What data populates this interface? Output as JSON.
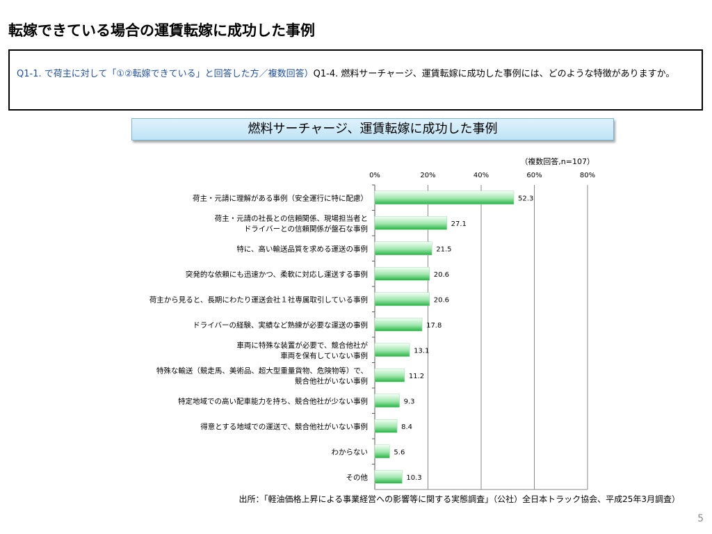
{
  "title": "転嫁できている場合の運賃転嫁に成功した事例",
  "question": {
    "q1": "Q1-1. で荷主に対して「①②転嫁できている」と回答した方／複数回答）",
    "q2": "Q1-4. 燃料サーチャージ、運賃転嫁に成功した事例には、どのような特徴がありますか。"
  },
  "chart_title": "燃料サーチャージ、運賃転嫁に成功した事例",
  "chart_data": {
    "type": "bar",
    "orientation": "horizontal",
    "note": "（複数回答,n=107）",
    "unit": "%",
    "xlim": [
      0,
      80
    ],
    "xticks": [
      "0%",
      "20%",
      "40%",
      "60%",
      "80%"
    ],
    "tick_values": [
      0,
      20,
      40,
      60,
      80
    ],
    "grid": true,
    "bar_color": "#2dbb4a",
    "categories": [
      [
        "荷主・元請に理解がある事例（安全運行に特に配慮）"
      ],
      [
        "荷主・元請の社長との信頼関係、現場担当者と",
        "ドライバーとの信頼関係が盤石な事例"
      ],
      [
        "特に、高い輸送品質を求める運送の事例"
      ],
      [
        "突発的な依頼にも迅速かつ、柔軟に対応し運送する事例"
      ],
      [
        "荷主から見ると、長期にわたり運送会社１社専属取引している事例"
      ],
      [
        "ドライバーの経験、実績など熟練が必要な運送の事例"
      ],
      [
        "車両に特殊な装置が必要で、競合他社が",
        "車両を保有していない事例"
      ],
      [
        "特殊な輸送（競走馬、美術品、超大型重量貨物、危険物等）で、",
        "競合他社がいない事例"
      ],
      [
        "特定地域での高い配車能力を持ち、競合他社が少ない事例"
      ],
      [
        "得意とする地域での運送で、競合他社がいない事例"
      ],
      [
        "わからない"
      ],
      [
        "その他"
      ]
    ],
    "values": [
      52.3,
      27.1,
      21.5,
      20.6,
      20.6,
      17.8,
      13.1,
      11.2,
      9.3,
      8.4,
      5.6,
      10.3
    ],
    "value_labels": [
      "52.3",
      "27.1",
      "21.5",
      "20.6",
      "20.6",
      "17.8",
      "13.1",
      "11.2",
      "9.3",
      "8.4",
      "5.6",
      "10.3"
    ]
  },
  "source": "出所：「軽油価格上昇による事業経営への影響等に関する実態調査」（公社）全日本トラック協会、平成25年3月調査）",
  "page_number": "5"
}
